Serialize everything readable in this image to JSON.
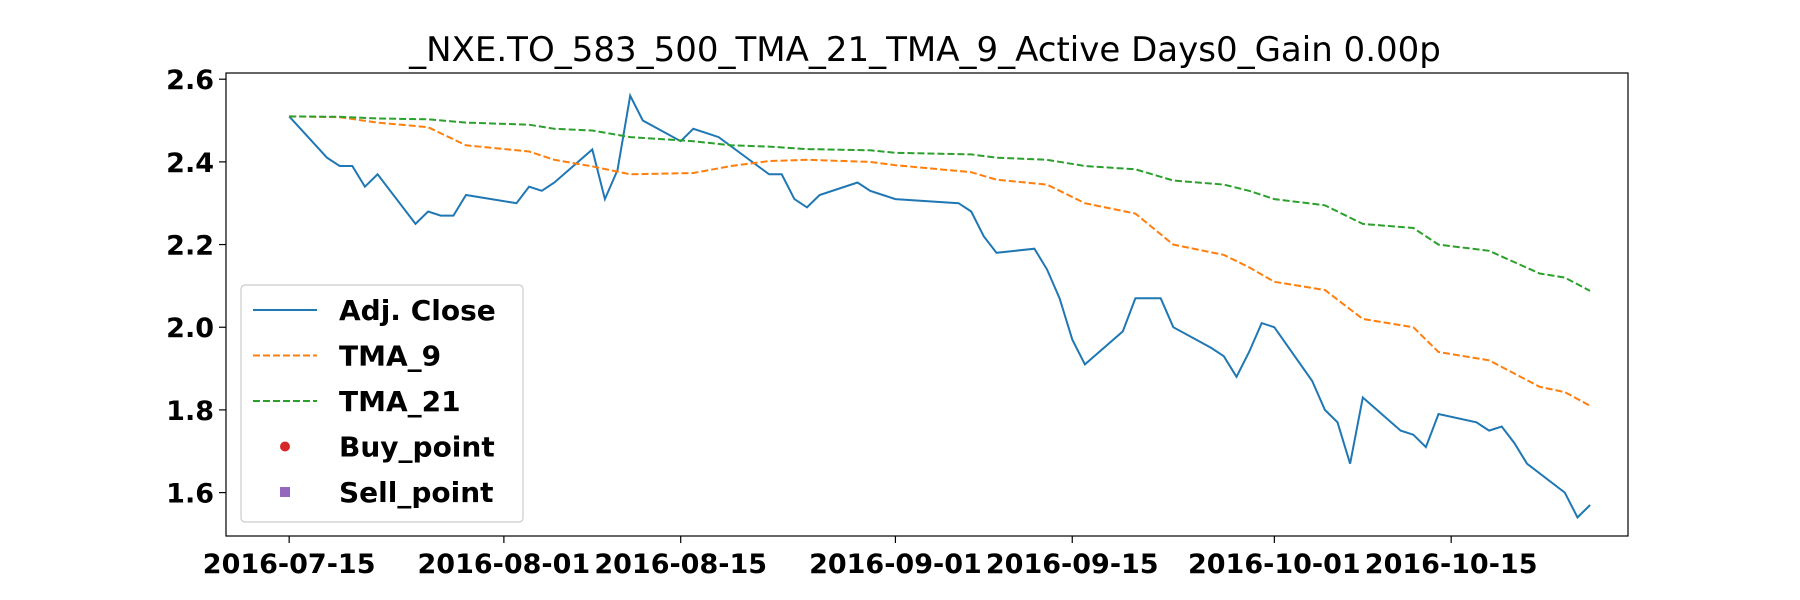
{
  "chart_data": {
    "type": "line",
    "title": "_NXE.TO_583_500_TMA_21_TMA_9_Active Days0_Gain   0.00p",
    "xlabel": "",
    "ylabel": "",
    "xlim": [
      "2016-07-10",
      "2016-10-29"
    ],
    "ylim": [
      1.495,
      2.615
    ],
    "grid": false,
    "legend_position": "lower-left",
    "x_ticks": [
      "2016-07-15",
      "2016-08-01",
      "2016-08-15",
      "2016-09-01",
      "2016-09-15",
      "2016-10-01",
      "2016-10-15"
    ],
    "y_ticks": [
      "1.6",
      "1.8",
      "2.0",
      "2.2",
      "2.4",
      "2.6"
    ],
    "series": [
      {
        "name": "Adj. Close",
        "style": "solid",
        "color": "#1f77b4",
        "points": [
          [
            "2016-07-15",
            2.51
          ],
          [
            "2016-07-18",
            2.41
          ],
          [
            "2016-07-19",
            2.39
          ],
          [
            "2016-07-20",
            2.39
          ],
          [
            "2016-07-21",
            2.34
          ],
          [
            "2016-07-22",
            2.37
          ],
          [
            "2016-07-25",
            2.25
          ],
          [
            "2016-07-26",
            2.28
          ],
          [
            "2016-07-27",
            2.27
          ],
          [
            "2016-07-28",
            2.27
          ],
          [
            "2016-07-29",
            2.32
          ],
          [
            "2016-08-02",
            2.3
          ],
          [
            "2016-08-03",
            2.34
          ],
          [
            "2016-08-04",
            2.33
          ],
          [
            "2016-08-05",
            2.35
          ],
          [
            "2016-08-08",
            2.43
          ],
          [
            "2016-08-09",
            2.31
          ],
          [
            "2016-08-10",
            2.38
          ],
          [
            "2016-08-11",
            2.56
          ],
          [
            "2016-08-12",
            2.5
          ],
          [
            "2016-08-15",
            2.45
          ],
          [
            "2016-08-16",
            2.48
          ],
          [
            "2016-08-17",
            2.47
          ],
          [
            "2016-08-18",
            2.46
          ],
          [
            "2016-08-22",
            2.37
          ],
          [
            "2016-08-23",
            2.37
          ],
          [
            "2016-08-24",
            2.31
          ],
          [
            "2016-08-25",
            2.29
          ],
          [
            "2016-08-26",
            2.32
          ],
          [
            "2016-08-29",
            2.35
          ],
          [
            "2016-08-30",
            2.33
          ],
          [
            "2016-08-31",
            2.32
          ],
          [
            "2016-09-01",
            2.31
          ],
          [
            "2016-09-06",
            2.3
          ],
          [
            "2016-09-07",
            2.28
          ],
          [
            "2016-09-08",
            2.22
          ],
          [
            "2016-09-09",
            2.18
          ],
          [
            "2016-09-12",
            2.19
          ],
          [
            "2016-09-13",
            2.14
          ],
          [
            "2016-09-14",
            2.07
          ],
          [
            "2016-09-15",
            1.97
          ],
          [
            "2016-09-16",
            1.91
          ],
          [
            "2016-09-19",
            1.99
          ],
          [
            "2016-09-20",
            2.07
          ],
          [
            "2016-09-22",
            2.07
          ],
          [
            "2016-09-23",
            2.0
          ],
          [
            "2016-09-26",
            1.95
          ],
          [
            "2016-09-27",
            1.93
          ],
          [
            "2016-09-28",
            1.88
          ],
          [
            "2016-09-29",
            1.94
          ],
          [
            "2016-09-30",
            2.01
          ],
          [
            "2016-10-01",
            2.0
          ],
          [
            "2016-10-04",
            1.87
          ],
          [
            "2016-10-05",
            1.8
          ],
          [
            "2016-10-06",
            1.77
          ],
          [
            "2016-10-07",
            1.67
          ],
          [
            "2016-10-08",
            1.83
          ],
          [
            "2016-10-11",
            1.75
          ],
          [
            "2016-10-12",
            1.74
          ],
          [
            "2016-10-13",
            1.71
          ],
          [
            "2016-10-14",
            1.79
          ],
          [
            "2016-10-17",
            1.77
          ],
          [
            "2016-10-18",
            1.75
          ],
          [
            "2016-10-19",
            1.76
          ],
          [
            "2016-10-20",
            1.72
          ],
          [
            "2016-10-21",
            1.67
          ],
          [
            "2016-10-24",
            1.6
          ],
          [
            "2016-10-25",
            1.54
          ],
          [
            "2016-10-26",
            1.57
          ]
        ]
      },
      {
        "name": "TMA_9",
        "style": "dashed",
        "color": "#ff7f0e",
        "points": [
          [
            "2016-07-15",
            2.51
          ],
          [
            "2016-07-19",
            2.508
          ],
          [
            "2016-07-22",
            2.495
          ],
          [
            "2016-07-26",
            2.484
          ],
          [
            "2016-07-29",
            2.44
          ],
          [
            "2016-08-03",
            2.425
          ],
          [
            "2016-08-05",
            2.405
          ],
          [
            "2016-08-08",
            2.389
          ],
          [
            "2016-08-11",
            2.37
          ],
          [
            "2016-08-16",
            2.373
          ],
          [
            "2016-08-19",
            2.39
          ],
          [
            "2016-08-22",
            2.402
          ],
          [
            "2016-08-25",
            2.405
          ],
          [
            "2016-08-30",
            2.4
          ],
          [
            "2016-09-01",
            2.392
          ],
          [
            "2016-09-07",
            2.375
          ],
          [
            "2016-09-09",
            2.357
          ],
          [
            "2016-09-13",
            2.345
          ],
          [
            "2016-09-16",
            2.3
          ],
          [
            "2016-09-20",
            2.275
          ],
          [
            "2016-09-23",
            2.2
          ],
          [
            "2016-09-27",
            2.175
          ],
          [
            "2016-09-29",
            2.145
          ],
          [
            "2016-10-01",
            2.11
          ],
          [
            "2016-10-05",
            2.09
          ],
          [
            "2016-10-08",
            2.02
          ],
          [
            "2016-10-12",
            2.0
          ],
          [
            "2016-10-14",
            1.94
          ],
          [
            "2016-10-18",
            1.92
          ],
          [
            "2016-10-22",
            1.856
          ],
          [
            "2016-10-24",
            1.843
          ],
          [
            "2016-10-26",
            1.81
          ]
        ]
      },
      {
        "name": "TMA_21",
        "style": "dashed",
        "color": "#2ca02c",
        "points": [
          [
            "2016-07-15",
            2.51
          ],
          [
            "2016-07-19",
            2.509
          ],
          [
            "2016-07-22",
            2.505
          ],
          [
            "2016-07-26",
            2.503
          ],
          [
            "2016-07-29",
            2.495
          ],
          [
            "2016-08-03",
            2.49
          ],
          [
            "2016-08-05",
            2.48
          ],
          [
            "2016-08-08",
            2.476
          ],
          [
            "2016-08-11",
            2.46
          ],
          [
            "2016-08-16",
            2.45
          ],
          [
            "2016-08-19",
            2.44
          ],
          [
            "2016-08-22",
            2.437
          ],
          [
            "2016-08-25",
            2.431
          ],
          [
            "2016-08-30",
            2.428
          ],
          [
            "2016-09-01",
            2.422
          ],
          [
            "2016-09-07",
            2.418
          ],
          [
            "2016-09-09",
            2.41
          ],
          [
            "2016-09-13",
            2.405
          ],
          [
            "2016-09-16",
            2.39
          ],
          [
            "2016-09-20",
            2.382
          ],
          [
            "2016-09-23",
            2.355
          ],
          [
            "2016-09-27",
            2.345
          ],
          [
            "2016-09-29",
            2.33
          ],
          [
            "2016-10-01",
            2.31
          ],
          [
            "2016-10-05",
            2.295
          ],
          [
            "2016-10-08",
            2.25
          ],
          [
            "2016-10-12",
            2.24
          ],
          [
            "2016-10-14",
            2.2
          ],
          [
            "2016-10-18",
            2.185
          ],
          [
            "2016-10-22",
            2.13
          ],
          [
            "2016-10-24",
            2.12
          ],
          [
            "2016-10-26",
            2.088
          ]
        ]
      },
      {
        "name": "Buy_point",
        "style": "marker-circle",
        "color": "#d62728",
        "points": []
      },
      {
        "name": "Sell_point",
        "style": "marker-square",
        "color": "#9467bd",
        "points": []
      }
    ]
  }
}
